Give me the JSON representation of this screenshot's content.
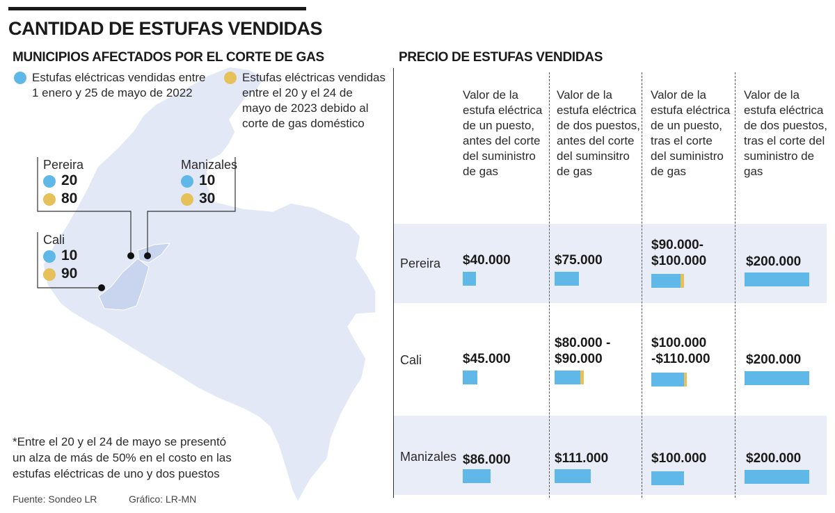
{
  "header": {
    "title": "CANTIDAD DE ESTUFAS VENDIDAS",
    "map_subtitle": "MUNICIPIOS AFECTADOS POR EL CORTE DE GAS",
    "table_subtitle": "PRECIO DE ESTUFAS VENDIDAS"
  },
  "colors": {
    "blue": "#5fb8e8",
    "gold": "#e6c15a",
    "band": "#e9edf7",
    "map_fill": "#e3e8f6",
    "map_highlight": "#c9d4ee"
  },
  "legend": [
    {
      "label": "Estufas eléctricas vendidas entre\n1 enero y 25 de mayo de 2022",
      "color": "#5fb8e8"
    },
    {
      "label": "Estufas eléctricas vendidas\nentre el  20 y el 24 de\nmayo de 2023 debido al\ncorte de gas doméstico",
      "color": "#e6c15a"
    }
  ],
  "cities": [
    {
      "name": "Pereira",
      "v2022": "20",
      "v2023": "80"
    },
    {
      "name": "Manizales",
      "v2022": "10",
      "v2023": "30"
    },
    {
      "name": "Cali",
      "v2022": "10",
      "v2023": "90"
    }
  ],
  "note": "*Entre el 20 y el 24 de mayo se presentó un alza de más de 50% en el costo en las estufas eléctricas de uno y dos puestos",
  "source": {
    "fuente": "Fuente: Sondeo LR",
    "grafico": "Gráfico: LR-MN"
  },
  "chart_data": [
    {
      "type": "bar",
      "title": "CANTIDAD DE ESTUFAS VENDIDAS",
      "subtitle": "MUNICIPIOS AFECTADOS POR EL CORTE DE GAS",
      "categories": [
        "Pereira",
        "Manizales",
        "Cali"
      ],
      "series": [
        {
          "name": "Estufas eléctricas vendidas entre 1 enero y 25 de mayo de 2022",
          "values": [
            20,
            10,
            10
          ]
        },
        {
          "name": "Estufas eléctricas vendidas entre el 20 y el 24 de mayo de 2023 debido al corte de gas doméstico",
          "values": [
            80,
            30,
            90
          ]
        }
      ]
    },
    {
      "type": "table",
      "title": "PRECIO DE ESTUFAS VENDIDAS",
      "columns": [
        "Valor de la\nestufa eléctrica\nde un puesto,\nantes del corte\ndel suministro\nde gas",
        "Valor de la\nestufa eléctrica\nde dos puestos,\nantes del corte\ndel suminsitro\nde gas",
        "Valor de la\nestufa eléctrica\nde un puesto,\ntras el corte\ndel suministro\nde gas",
        "Valor de la\nestufa eléctrica\nde dos puestos,\ntras el corte del\nsuministro de\ngas"
      ],
      "rows": [
        {
          "city": "Pereira",
          "cells": [
            {
              "label": "$40.000",
              "low": 40000,
              "high": 40000
            },
            {
              "label": "$75.000",
              "low": 75000,
              "high": 75000
            },
            {
              "label": "$90.000-\n$100.000",
              "low": 90000,
              "high": 100000
            },
            {
              "label": "$200.000",
              "low": 200000,
              "high": 200000
            }
          ]
        },
        {
          "city": "Cali",
          "cells": [
            {
              "label": "$45.000",
              "low": 45000,
              "high": 45000
            },
            {
              "label": "$80.000 -\n$90.000",
              "low": 80000,
              "high": 90000
            },
            {
              "label": "$100.000\n-$110.000",
              "low": 100000,
              "high": 110000
            },
            {
              "label": "$200.000",
              "low": 200000,
              "high": 200000
            }
          ]
        },
        {
          "city": "Manizales",
          "cells": [
            {
              "label": "$86.000",
              "low": 86000,
              "high": 86000
            },
            {
              "label": "$111.000",
              "low": 111000,
              "high": 111000
            },
            {
              "label": "$100.000",
              "low": 100000,
              "high": 100000
            },
            {
              "label": "$200.000",
              "low": 200000,
              "high": 200000
            }
          ]
        }
      ],
      "bar_scale_max": 200000
    }
  ]
}
